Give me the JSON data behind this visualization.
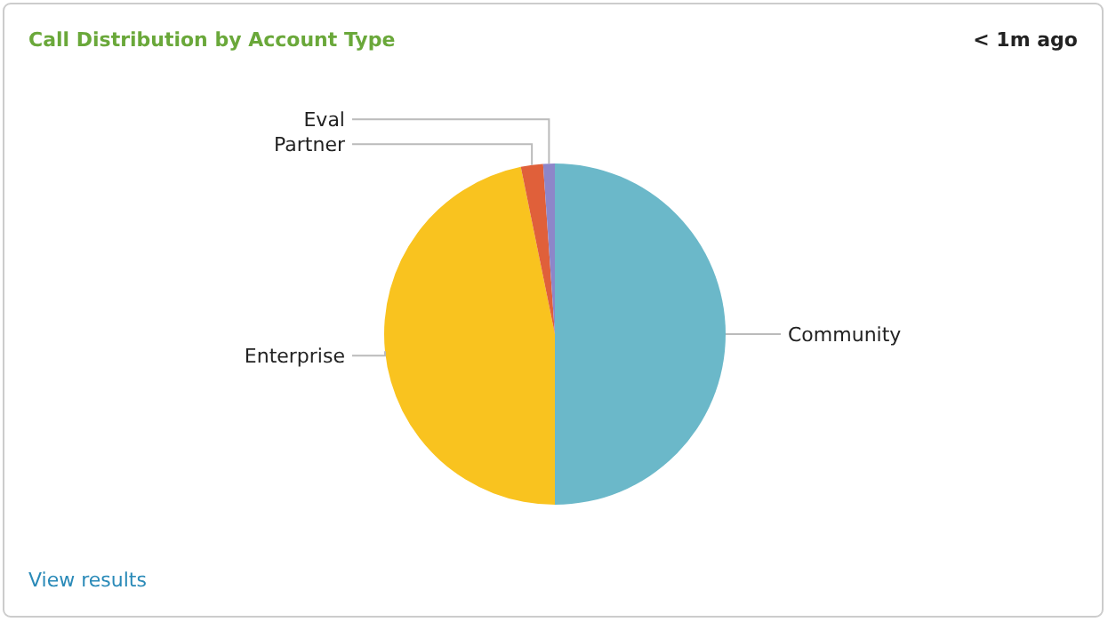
{
  "chart_data": {
    "type": "pie",
    "title": "Call Distribution by Account Type",
    "categories": [
      "Community",
      "Enterprise",
      "Partner",
      "Eval"
    ],
    "values": [
      50,
      46.8,
      2.1,
      1.1
    ],
    "colors": [
      "#6bb8c9",
      "#f9c31f",
      "#e0603a",
      "#8d86c9"
    ],
    "annotations": [
      "< 1m ago",
      "View results"
    ]
  }
}
